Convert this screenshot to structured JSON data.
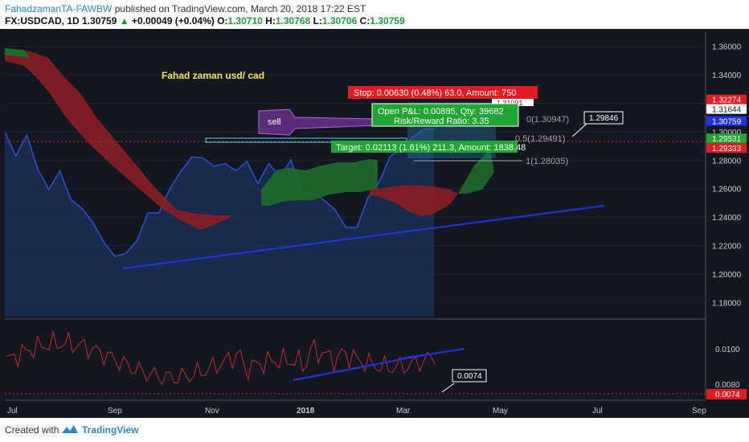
{
  "header": {
    "author": "FahadzamanTA-FAWBW",
    "published": "published on TradingView.com, March 20, 2018 17:22 EST",
    "symbol": "FX:USDCAD, 1D",
    "last": "1.30759",
    "change": "+0.00049 (+0.04%)",
    "o_label": "O:",
    "o": "1.30710",
    "h_label": "H:",
    "h": "1.30768",
    "l_label": "L:",
    "l": "1.30706",
    "c_label": "C:",
    "c": "1.30759",
    "up_arrow": "▲"
  },
  "colors": {
    "background": "#131722",
    "price_area": "#1c3a6e",
    "price_line": "#2a4fd6",
    "cloud_bear": "#8b1d24",
    "cloud_bull": "#1f6b2a",
    "trendline": "#2233dd",
    "stop_red": "#e21b22",
    "target_green": "#21a634",
    "osc_line": "#c3282d"
  },
  "chart_data": {
    "type": "line",
    "title": "Fahad zaman usd/ cad",
    "symbol": "USDCAD",
    "timeframe": "1D",
    "x_ticks": [
      "Jul",
      "Sep",
      "Nov",
      "2018",
      "Mar",
      "May",
      "Jul",
      "Sep"
    ],
    "y_ticks": [
      "1.36000",
      "1.34000",
      "1.32000",
      "1.30000",
      "1.28000",
      "1.26000",
      "1.24000",
      "1.22000",
      "1.20000",
      "1.18000"
    ],
    "ylim": [
      1.17,
      1.37
    ],
    "price_labels": [
      {
        "text": "1.32274",
        "color": "#e21b22",
        "value": 1.32274
      },
      {
        "text": "1.31644",
        "color": "#ffffff",
        "value": 1.31644
      },
      {
        "text": "1.30759",
        "color": "#2233dd",
        "value": 1.30759
      },
      {
        "text": "1.29531",
        "color": "#21a634",
        "value": 1.29531
      },
      {
        "text": "1.29333",
        "color": "#e21b22",
        "value": 1.29333
      }
    ],
    "price_series": [
      {
        "x": 0,
        "y": 1.3
      },
      {
        "x": 4,
        "y": 1.285
      },
      {
        "x": 8,
        "y": 1.295
      },
      {
        "x": 12,
        "y": 1.275
      },
      {
        "x": 16,
        "y": 1.26
      },
      {
        "x": 20,
        "y": 1.27
      },
      {
        "x": 24,
        "y": 1.255
      },
      {
        "x": 28,
        "y": 1.245
      },
      {
        "x": 32,
        "y": 1.235
      },
      {
        "x": 36,
        "y": 1.225
      },
      {
        "x": 40,
        "y": 1.21
      },
      {
        "x": 44,
        "y": 1.215
      },
      {
        "x": 48,
        "y": 1.225
      },
      {
        "x": 52,
        "y": 1.24
      },
      {
        "x": 56,
        "y": 1.245
      },
      {
        "x": 60,
        "y": 1.26
      },
      {
        "x": 64,
        "y": 1.27
      },
      {
        "x": 68,
        "y": 1.285
      },
      {
        "x": 72,
        "y": 1.28
      },
      {
        "x": 76,
        "y": 1.275
      },
      {
        "x": 80,
        "y": 1.28
      },
      {
        "x": 84,
        "y": 1.27
      },
      {
        "x": 88,
        "y": 1.28
      },
      {
        "x": 92,
        "y": 1.265
      },
      {
        "x": 96,
        "y": 1.275
      },
      {
        "x": 100,
        "y": 1.27
      },
      {
        "x": 104,
        "y": 1.28
      },
      {
        "x": 108,
        "y": 1.255
      },
      {
        "x": 112,
        "y": 1.26
      },
      {
        "x": 116,
        "y": 1.25
      },
      {
        "x": 120,
        "y": 1.245
      },
      {
        "x": 124,
        "y": 1.235
      },
      {
        "x": 128,
        "y": 1.23
      },
      {
        "x": 132,
        "y": 1.255
      },
      {
        "x": 136,
        "y": 1.265
      },
      {
        "x": 140,
        "y": 1.28
      },
      {
        "x": 144,
        "y": 1.29
      },
      {
        "x": 148,
        "y": 1.295
      },
      {
        "x": 152,
        "y": 1.3
      },
      {
        "x": 156,
        "y": 1.305
      }
    ],
    "trendline": {
      "from": [
        1.205,
        0
      ],
      "to": [
        1.248,
        1
      ],
      "label": ""
    },
    "position": {
      "stop_text": "Stop: 0.00630 (0.48%) 63.0, Amount: 750",
      "stop_value_label": "1.31091",
      "pnl_text": "Open P&L: 0.00885, Qty: 39682",
      "rr_text": "Risk/Reward Ratio: 3.35",
      "target_text": "Target: 0.02113 (1.61%) 211.3, Amount: 1838.48",
      "fib_0": "0(1.30947)",
      "fib_05": "0.5(1.29491)",
      "fib_1": "1(1.28035)",
      "callout": "1.29846",
      "sell_label": "sell"
    },
    "oscillator": {
      "y_ticks": [
        "0.0100",
        "0.0080"
      ],
      "current": "0.0074",
      "callout": "0.0074"
    }
  },
  "footer": {
    "created_with": "Created with",
    "brand": "TradingView"
  }
}
